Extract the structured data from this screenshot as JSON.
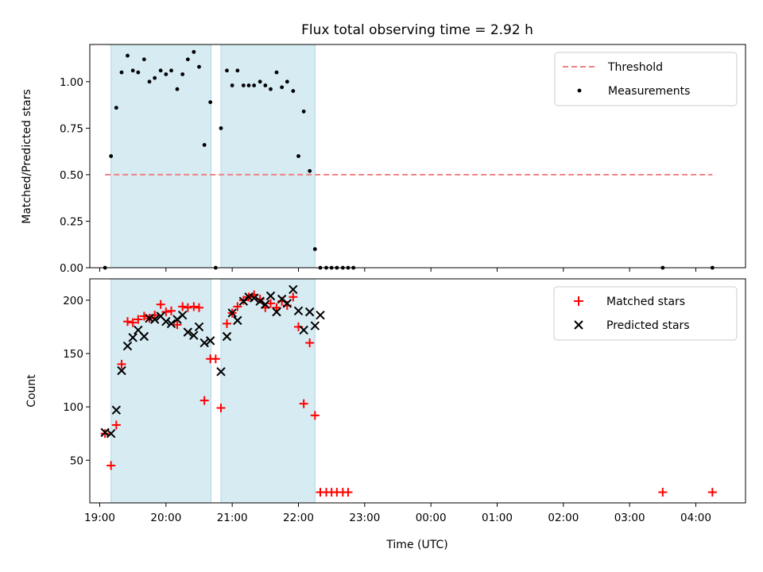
{
  "chart_data": {
    "title": "Flux total observing time = 2.92 h",
    "xlabel": "Time (UTC)",
    "x_ticks": [
      "19:00",
      "20:00",
      "21:00",
      "22:00",
      "23:00",
      "00:00",
      "01:00",
      "02:00",
      "03:00",
      "04:00"
    ],
    "x_range_hours": [
      18.85,
      28.75
    ],
    "observing_windows_hours": [
      [
        19.17,
        20.68
      ],
      [
        20.83,
        22.25
      ]
    ],
    "window_color": "#add8e6",
    "panels": [
      {
        "type": "scatter",
        "ylabel": "Matched/Predicted stars",
        "ylim": [
          0.0,
          1.2
        ],
        "y_ticks": [
          "0.00",
          "0.25",
          "0.50",
          "0.75",
          "1.00"
        ],
        "y_tick_values": [
          0.0,
          0.25,
          0.5,
          0.75,
          1.0
        ],
        "legend_position": "top-right",
        "threshold": {
          "name": "Threshold",
          "value": 0.5,
          "x_range_hours": [
            19.08,
            28.25
          ],
          "color": "#f08080"
        },
        "series": [
          {
            "name": "Measurements",
            "marker": "dot",
            "color": "#000000",
            "x_hours": [
              19.08,
              19.17,
              19.25,
              19.33,
              19.42,
              19.5,
              19.58,
              19.67,
              19.75,
              19.83,
              19.92,
              20.0,
              20.08,
              20.17,
              20.25,
              20.33,
              20.42,
              20.5,
              20.58,
              20.67,
              20.75,
              20.83,
              20.92,
              21.0,
              21.08,
              21.17,
              21.25,
              21.33,
              21.42,
              21.5,
              21.58,
              21.67,
              21.75,
              21.83,
              21.92,
              22.0,
              22.08,
              22.17,
              22.25,
              22.33,
              22.42,
              22.5,
              22.58,
              22.67,
              22.75,
              22.83,
              27.5,
              28.25
            ],
            "values": [
              0.0,
              0.6,
              0.86,
              1.05,
              1.14,
              1.06,
              1.05,
              1.12,
              1.0,
              1.02,
              1.06,
              1.04,
              1.06,
              0.96,
              1.04,
              1.12,
              1.16,
              1.08,
              0.66,
              0.89,
              0.0,
              0.75,
              1.06,
              0.98,
              1.06,
              0.98,
              0.98,
              0.98,
              1.0,
              0.98,
              0.96,
              1.05,
              0.97,
              1.0,
              0.95,
              0.6,
              0.84,
              0.52,
              0.1,
              0.0,
              0.0,
              0.0,
              0.0,
              0.0,
              0.0,
              0.0,
              0.0,
              0.0
            ]
          }
        ]
      },
      {
        "type": "scatter",
        "ylabel": "Count",
        "ylim": [
          10,
          220
        ],
        "y_ticks": [
          "50",
          "100",
          "150",
          "200"
        ],
        "y_tick_values": [
          50,
          100,
          150,
          200
        ],
        "legend_position": "top-right",
        "series": [
          {
            "name": "Matched stars",
            "marker": "plus",
            "color": "#ff0000",
            "x_hours": [
              19.08,
              19.17,
              19.25,
              19.33,
              19.42,
              19.5,
              19.58,
              19.67,
              19.75,
              19.83,
              19.92,
              20.0,
              20.08,
              20.17,
              20.25,
              20.33,
              20.42,
              20.5,
              20.58,
              20.67,
              20.75,
              20.83,
              20.92,
              21.0,
              21.08,
              21.17,
              21.25,
              21.33,
              21.42,
              21.5,
              21.58,
              21.67,
              21.75,
              21.83,
              21.92,
              22.0,
              22.08,
              22.17,
              22.25,
              22.33,
              22.42,
              22.5,
              22.58,
              22.67,
              22.75,
              27.5,
              28.25
            ],
            "values": [
              75,
              45,
              83,
              140,
              180,
              179,
              182,
              185,
              183,
              186,
              196,
              189,
              190,
              177,
              194,
              193,
              194,
              193,
              106,
              145,
              145,
              99,
              178,
              188,
              194,
              200,
              203,
              205,
              201,
              193,
              197,
              193,
              199,
              195,
              203,
              175,
              103,
              160,
              92,
              20,
              20,
              20,
              20,
              20,
              20,
              20,
              20
            ]
          },
          {
            "name": "Predicted stars",
            "marker": "x",
            "color": "#000000",
            "x_hours": [
              19.08,
              19.17,
              19.25,
              19.33,
              19.42,
              19.5,
              19.58,
              19.67,
              19.75,
              19.83,
              19.92,
              20.0,
              20.08,
              20.17,
              20.25,
              20.33,
              20.42,
              20.5,
              20.58,
              20.67,
              20.83,
              20.92,
              21.0,
              21.08,
              21.17,
              21.25,
              21.33,
              21.42,
              21.5,
              21.58,
              21.67,
              21.75,
              21.83,
              21.92,
              22.0,
              22.08,
              22.17,
              22.25,
              22.33
            ],
            "values": [
              76,
              75,
              97,
              134,
              157,
              165,
              172,
              166,
              183,
              182,
              185,
              180,
              178,
              182,
              186,
              170,
              167,
              175,
              160,
              162,
              133,
              166,
              188,
              181,
              199,
              203,
              202,
              199,
              196,
              204,
              189,
              201,
              197,
              210,
              190,
              172,
              189,
              176,
              186
            ]
          }
        ]
      }
    ]
  }
}
